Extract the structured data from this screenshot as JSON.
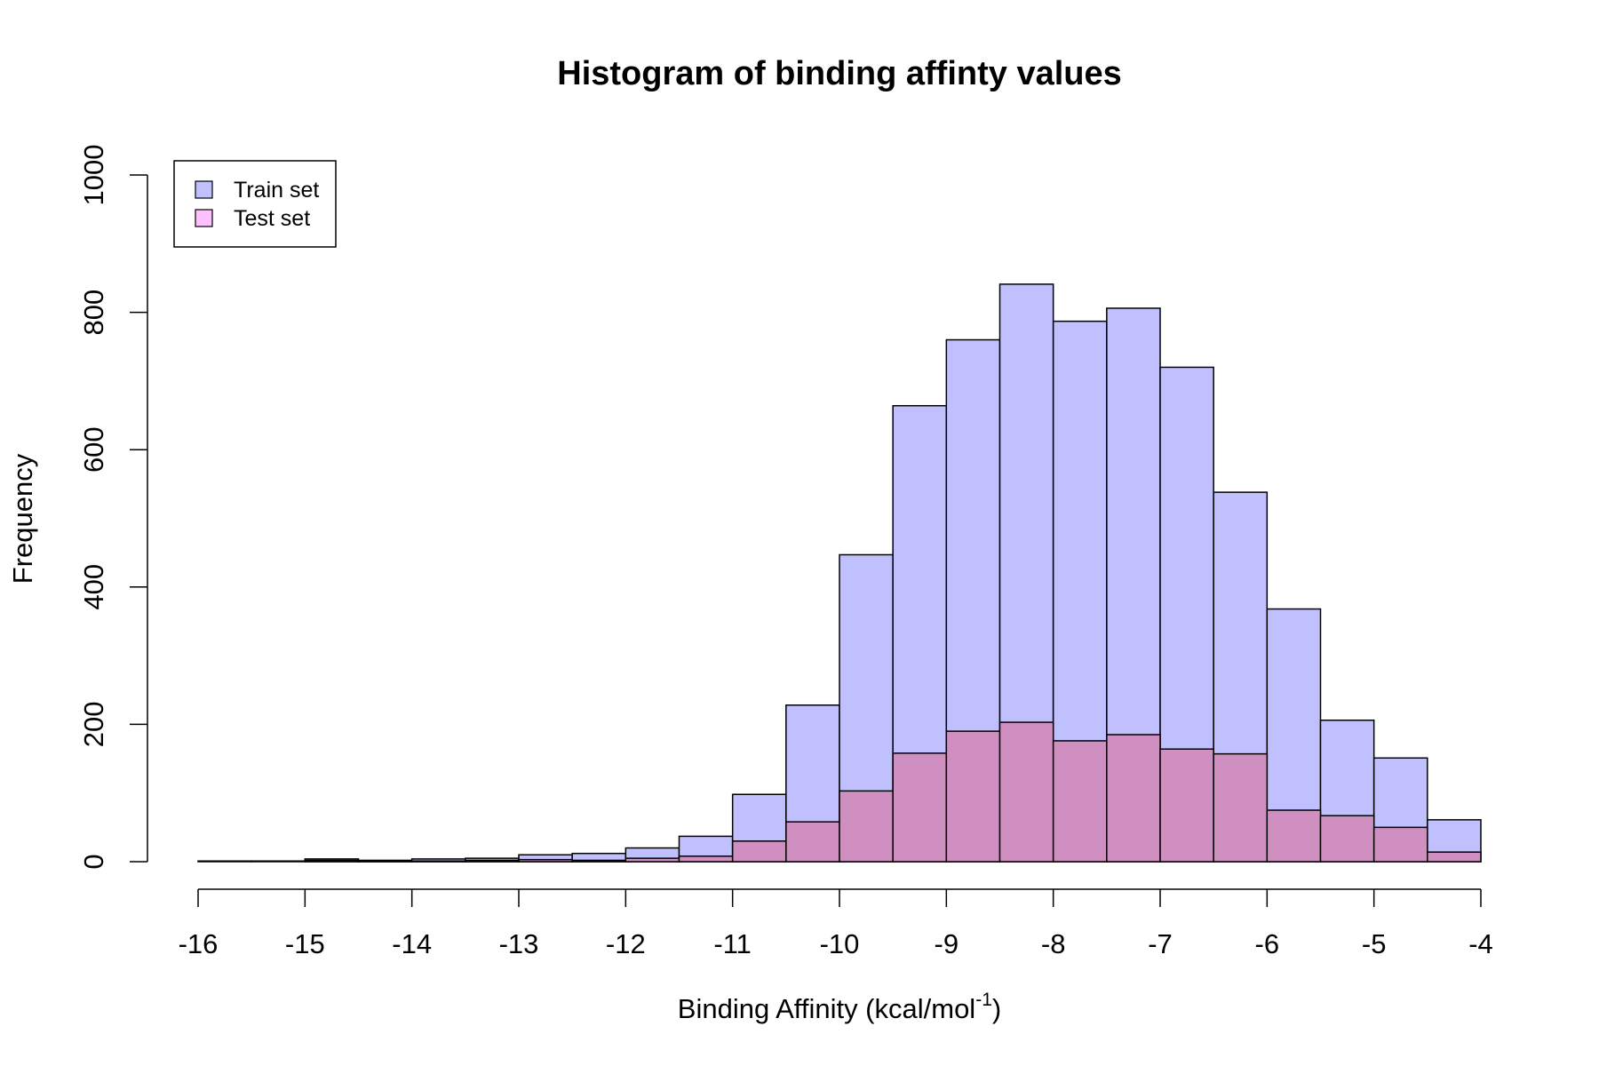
{
  "chart_data": {
    "type": "bar",
    "subtype": "overlaid-histogram",
    "title": "Histogram of binding affinty values",
    "xlabel": {
      "main": "Binding Affinity (kcal/mol",
      "superscript": "-1",
      "suffix": ")"
    },
    "ylabel": "Frequency",
    "xlim": [
      -16,
      -4
    ],
    "ylim": [
      0,
      1000
    ],
    "x_ticks": [
      "-16",
      "-15",
      "-14",
      "-13",
      "-12",
      "-11",
      "-10",
      "-9",
      "-8",
      "-7",
      "-6",
      "-5",
      "-4"
    ],
    "y_ticks": [
      "0",
      "200",
      "400",
      "600",
      "800",
      "1000"
    ],
    "grid": false,
    "legend_position": "top-left",
    "bin_edges": [
      -16,
      -15.5,
      -15,
      -14.5,
      -14,
      -13.5,
      -13,
      -12.5,
      -12,
      -11.5,
      -11,
      -10.5,
      -10,
      -9.5,
      -9,
      -8.5,
      -8,
      -7.5,
      -7,
      -6.5,
      -6,
      -5.5,
      -5,
      -4.5,
      -4
    ],
    "series": [
      {
        "name": "Train set",
        "color": "#c0c0ff",
        "values": [
          1,
          1,
          4,
          2,
          4,
          5,
          10,
          12,
          20,
          37,
          98,
          228,
          447,
          664,
          760,
          841,
          787,
          806,
          720,
          538,
          368,
          206,
          151,
          61
        ]
      },
      {
        "name": "Test set",
        "color": "#ffc0ff",
        "overlap_color": "#cf8fc1",
        "values": [
          0,
          0,
          2,
          1,
          1,
          2,
          3,
          2,
          5,
          8,
          30,
          58,
          103,
          158,
          190,
          203,
          176,
          185,
          164,
          157,
          75,
          67,
          50,
          14
        ]
      }
    ]
  }
}
